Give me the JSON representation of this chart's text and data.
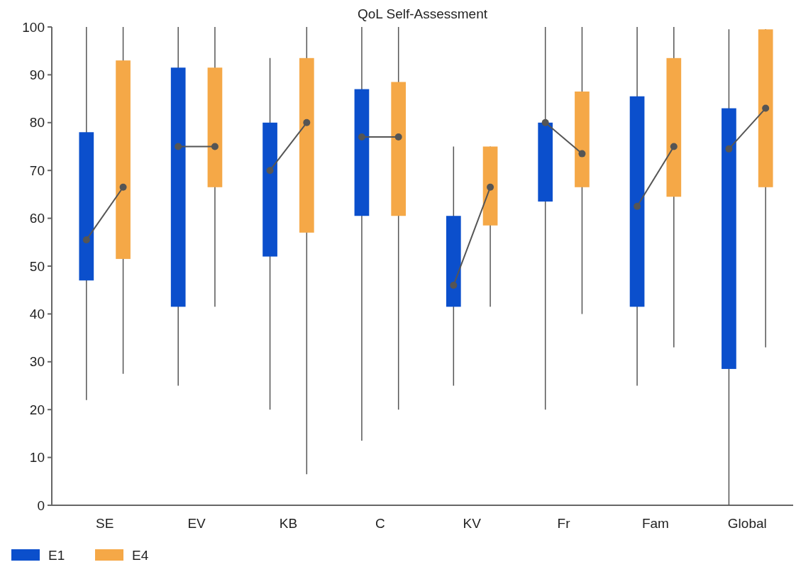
{
  "chart_data": {
    "type": "box",
    "title": "QoL Self-Assessment",
    "categories": [
      "SE",
      "EV",
      "KB",
      "C",
      "KV",
      "Fr",
      "Fam",
      "Global"
    ],
    "ylim": [
      0,
      100
    ],
    "yticks": [
      0,
      10,
      20,
      30,
      40,
      50,
      60,
      70,
      80,
      90,
      100
    ],
    "grid": false,
    "legend": "bottom left",
    "marker": "circle",
    "series": [
      {
        "name": "E1",
        "color": "#0b4fcc",
        "boxes": [
          {
            "low": 22,
            "q1": 47,
            "median": 55.5,
            "q3": 78,
            "high": 100
          },
          {
            "low": 25,
            "q1": 41.5,
            "median": 75,
            "q3": 91.5,
            "high": 100
          },
          {
            "low": 20,
            "q1": 52,
            "median": 70,
            "q3": 80,
            "high": 93.5
          },
          {
            "low": 13.5,
            "q1": 60.5,
            "median": 77,
            "q3": 87,
            "high": 100
          },
          {
            "low": 25,
            "q1": 41.5,
            "median": 46,
            "q3": 60.5,
            "high": 75
          },
          {
            "low": 20,
            "q1": 63.5,
            "median": 80,
            "q3": 80,
            "high": 100
          },
          {
            "low": 25,
            "q1": 41.5,
            "median": 62.5,
            "q3": 85.5,
            "high": 100
          },
          {
            "low": 0,
            "q1": 28.5,
            "median": 74.5,
            "q3": 83,
            "high": 99.5
          }
        ]
      },
      {
        "name": "E4",
        "color": "#f5a847",
        "boxes": [
          {
            "low": 27.5,
            "q1": 51.5,
            "median": 66.5,
            "q3": 93,
            "high": 100
          },
          {
            "low": 41.5,
            "q1": 66.5,
            "median": 75,
            "q3": 91.5,
            "high": 100
          },
          {
            "low": 6.5,
            "q1": 57,
            "median": 80,
            "q3": 93.5,
            "high": 100
          },
          {
            "low": 20,
            "q1": 60.5,
            "median": 77,
            "q3": 88.5,
            "high": 100
          },
          {
            "low": 41.5,
            "q1": 58.5,
            "median": 66.5,
            "q3": 75,
            "high": 75
          },
          {
            "low": 40,
            "q1": 66.5,
            "median": 73.5,
            "q3": 86.5,
            "high": 100
          },
          {
            "low": 33,
            "q1": 64.5,
            "median": 75,
            "q3": 93.5,
            "high": 100
          },
          {
            "low": 33,
            "q1": 66.5,
            "median": 83,
            "q3": 99.5,
            "high": 99.5
          }
        ]
      }
    ]
  }
}
